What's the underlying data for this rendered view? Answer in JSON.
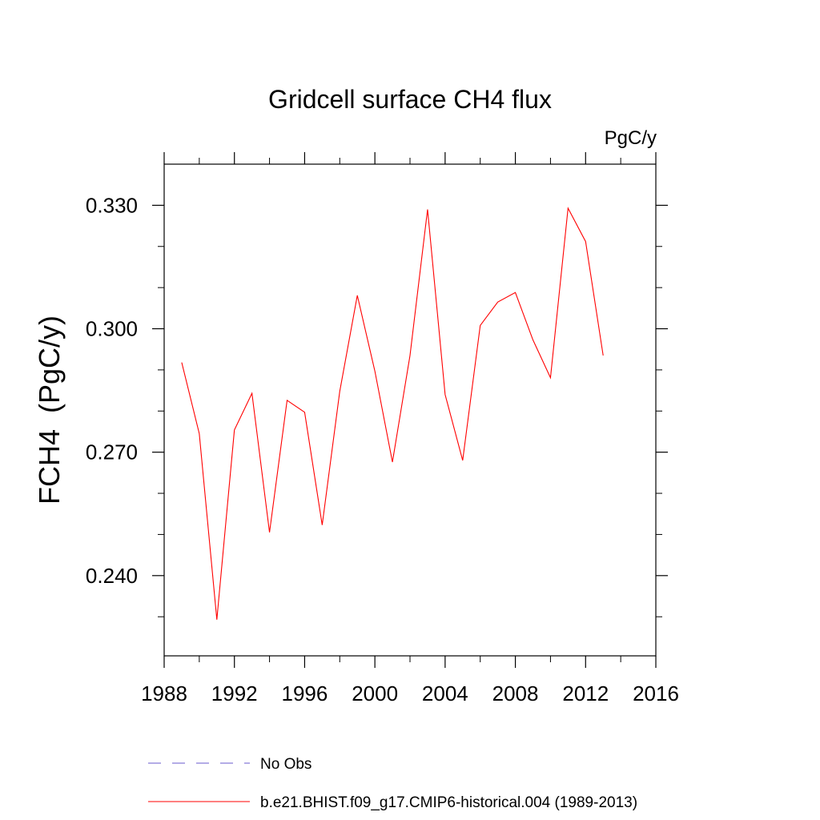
{
  "chart_data": {
    "type": "line",
    "title": "Gridcell surface CH4 flux",
    "units_label": "PgC/y",
    "ylabel": "FCH4  (PgC/y)",
    "xlabel": "",
    "xlim": [
      1988,
      2016
    ],
    "ylim": [
      0.2205,
      0.34
    ],
    "x_ticks": [
      1988,
      1992,
      1996,
      2000,
      2004,
      2008,
      2012,
      2016
    ],
    "x_tick_labels": [
      "1988",
      "1992",
      "1996",
      "2000",
      "2004",
      "2008",
      "2012",
      "2016"
    ],
    "y_ticks": [
      0.24,
      0.27,
      0.3,
      0.33
    ],
    "y_tick_labels": [
      "0.240",
      "0.270",
      "0.300",
      "0.330"
    ],
    "x_minor_step": 2,
    "y_minor_step": 0.01,
    "grid": false,
    "legend_position": "bottom-left",
    "series": [
      {
        "name": "b.e21.BHIST.f09_g17.CMIP6-historical.004 (1989-2013)",
        "color": "#ff0000",
        "style": "solid",
        "x": [
          1989,
          1990,
          1991,
          1992,
          1993,
          1994,
          1995,
          1996,
          1997,
          1998,
          1999,
          2000,
          2001,
          2002,
          2003,
          2004,
          2005,
          2006,
          2007,
          2008,
          2009,
          2010,
          2011,
          2012,
          2013
        ],
        "values": [
          0.2918,
          0.2745,
          0.2293,
          0.2754,
          0.2843,
          0.2505,
          0.2826,
          0.2797,
          0.2523,
          0.2848,
          0.3081,
          0.2897,
          0.2676,
          0.2935,
          0.329,
          0.284,
          0.268,
          0.3008,
          0.3065,
          0.3088,
          0.2973,
          0.2881,
          0.3293,
          0.3212,
          0.2935
        ]
      },
      {
        "name": "No Obs",
        "color": "#6a5acd",
        "style": "dashed",
        "x": [],
        "values": []
      }
    ]
  }
}
